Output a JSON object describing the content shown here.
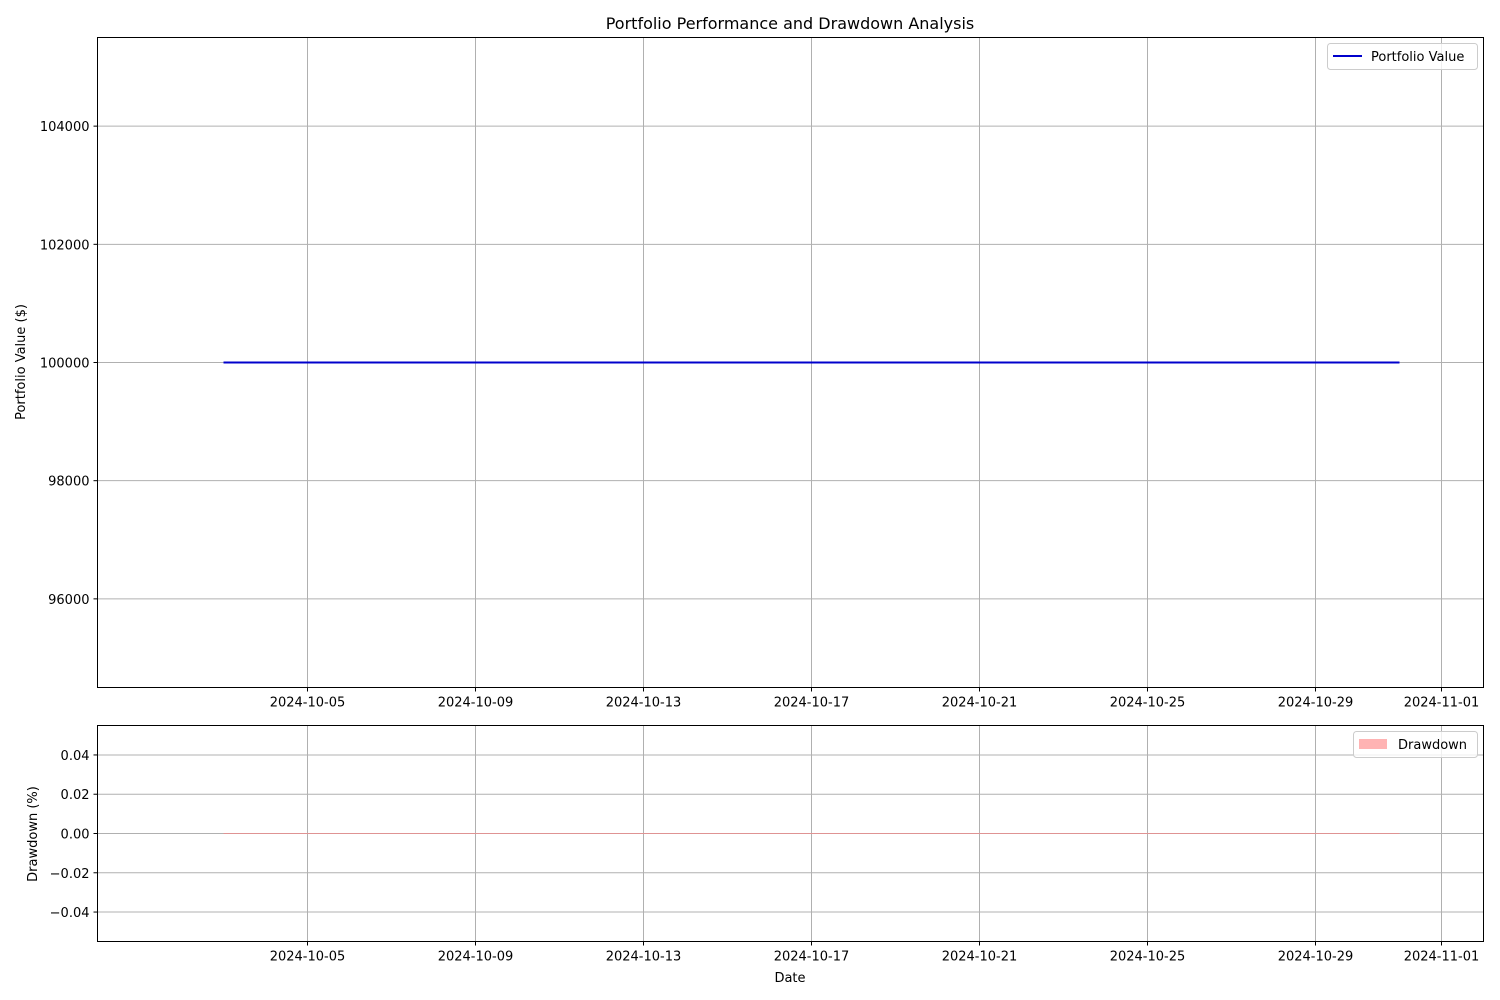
{
  "chart_data": [
    {
      "type": "line",
      "title": "Portfolio Performance and Drawdown Analysis",
      "xlabel": "",
      "ylabel": "Portfolio Value ($)",
      "x_ticks": [
        "2024-10-05",
        "2024-10-09",
        "2024-10-13",
        "2024-10-17",
        "2024-10-21",
        "2024-10-25",
        "2024-10-29",
        "2024-11-01"
      ],
      "y_ticks": [
        96000,
        98000,
        100000,
        102000,
        104000
      ],
      "y_tick_labels": [
        "96000",
        "98000",
        "100000",
        "102000",
        "104000"
      ],
      "xlim": [
        "2024-09-30",
        "2024-11-02"
      ],
      "ylim": [
        94500,
        105500
      ],
      "grid": true,
      "legend": "top-right",
      "series": [
        {
          "name": "Portfolio Value",
          "color": "#0000cc",
          "x": [
            "2024-10-03",
            "2024-10-31"
          ],
          "y": [
            100000,
            100000
          ]
        }
      ]
    },
    {
      "type": "area",
      "title": "",
      "xlabel": "Date",
      "ylabel": "Drawdown (%)",
      "x_ticks": [
        "2024-10-05",
        "2024-10-09",
        "2024-10-13",
        "2024-10-17",
        "2024-10-21",
        "2024-10-25",
        "2024-10-29",
        "2024-11-01"
      ],
      "y_ticks": [
        -0.04,
        -0.02,
        0.0,
        0.02,
        0.04
      ],
      "y_tick_labels": [
        "−0.04",
        "−0.02",
        "0.00",
        "0.02",
        "0.04"
      ],
      "xlim": [
        "2024-09-30",
        "2024-11-02"
      ],
      "ylim": [
        -0.055,
        0.055
      ],
      "grid": true,
      "legend": "top-right",
      "series": [
        {
          "name": "Drawdown",
          "color": "#ff8080",
          "x": [
            "2024-10-03",
            "2024-10-31"
          ],
          "y": [
            0.0,
            0.0
          ]
        }
      ]
    }
  ]
}
